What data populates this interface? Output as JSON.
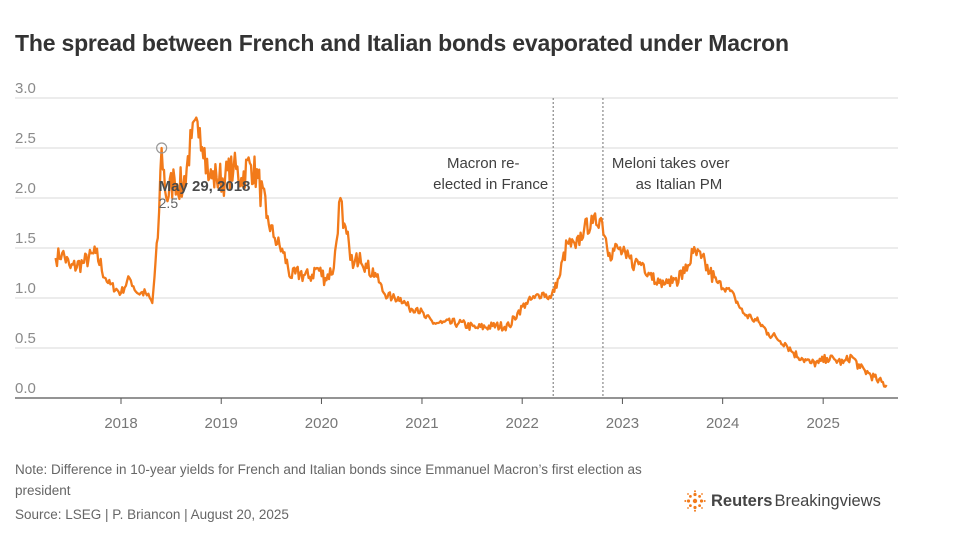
{
  "header": {
    "title": "The spread between French and Italian bonds evaporated under Macron"
  },
  "chart_data": {
    "type": "line",
    "title": "The spread between French and Italian bonds evaporated under Macron",
    "xlabel": "",
    "ylabel": "",
    "ylim": [
      0,
      3.0
    ],
    "y_ticks": [
      "3.0",
      "2.5",
      "2.0",
      "1.5",
      "1.0",
      "0.5",
      "0.0"
    ],
    "x_ticks": [
      "2018",
      "2019",
      "2020",
      "2021",
      "2022",
      "2023",
      "2024",
      "2025"
    ],
    "grid": true,
    "line_color": "#f27a1a",
    "series": [
      {
        "x": [
          "2017-05-08",
          "2017-06-01",
          "2017-07-01",
          "2017-08-15",
          "2017-10-01",
          "2017-11-15",
          "2018-01-01",
          "2018-02-01",
          "2018-03-01",
          "2018-04-01",
          "2018-04-25",
          "2018-05-15",
          "2018-05-29",
          "2018-06-15",
          "2018-07-15",
          "2018-08-15",
          "2018-09-15",
          "2018-10-15",
          "2018-11-01",
          "2018-11-20",
          "2018-12-15",
          "2019-01-15",
          "2019-02-15",
          "2019-03-15",
          "2019-04-15",
          "2019-05-15",
          "2019-06-15",
          "2019-07-15",
          "2019-08-15",
          "2019-09-15",
          "2019-10-15",
          "2019-11-15",
          "2019-12-15",
          "2020-01-15",
          "2020-02-15",
          "2020-03-10",
          "2020-03-20",
          "2020-04-10",
          "2020-04-25",
          "2020-05-20",
          "2020-06-15",
          "2020-07-15",
          "2020-08-15",
          "2020-09-15",
          "2020-10-15",
          "2020-11-15",
          "2020-12-15",
          "2021-01-15",
          "2021-02-15",
          "2021-03-15",
          "2021-05-15",
          "2021-07-15",
          "2021-09-15",
          "2021-11-15",
          "2021-12-15",
          "2022-01-15",
          "2022-02-15",
          "2022-03-15",
          "2022-04-15",
          "2022-05-15",
          "2022-06-14",
          "2022-07-15",
          "2022-08-15",
          "2022-09-15",
          "2022-10-15",
          "2022-11-15",
          "2022-12-15",
          "2023-01-15",
          "2023-02-15",
          "2023-03-15",
          "2023-04-15",
          "2023-05-15",
          "2023-06-15",
          "2023-07-15",
          "2023-08-15",
          "2023-09-15",
          "2023-10-15",
          "2023-11-15",
          "2023-12-15",
          "2024-01-15",
          "2024-02-15",
          "2024-03-15",
          "2024-04-15",
          "2024-05-15",
          "2024-06-15",
          "2024-07-15",
          "2024-08-15",
          "2024-09-15",
          "2024-10-15",
          "2024-11-15",
          "2024-12-15",
          "2025-01-15",
          "2025-02-15",
          "2025-03-15",
          "2025-04-15",
          "2025-05-15",
          "2025-06-15",
          "2025-07-15",
          "2025-08-20"
        ],
        "values": [
          1.4,
          1.45,
          1.3,
          1.35,
          1.45,
          1.15,
          1.05,
          1.2,
          1.05,
          1.05,
          0.95,
          1.6,
          2.5,
          2.0,
          2.2,
          2.1,
          2.6,
          2.7,
          2.5,
          2.2,
          2.2,
          2.2,
          2.3,
          2.2,
          2.35,
          2.2,
          1.8,
          1.6,
          1.45,
          1.2,
          1.25,
          1.2,
          1.3,
          1.2,
          1.3,
          2.0,
          1.7,
          1.55,
          1.3,
          1.45,
          1.3,
          1.25,
          1.05,
          1.0,
          1.0,
          0.9,
          0.9,
          0.8,
          0.75,
          0.75,
          0.75,
          0.7,
          0.72,
          0.72,
          0.85,
          0.95,
          1.0,
          1.05,
          1.0,
          1.2,
          1.55,
          1.5,
          1.7,
          1.75,
          1.8,
          1.45,
          1.5,
          1.4,
          1.35,
          1.35,
          1.25,
          1.15,
          1.15,
          1.2,
          1.25,
          1.45,
          1.4,
          1.25,
          1.15,
          1.1,
          1.0,
          0.85,
          0.8,
          0.75,
          0.65,
          0.6,
          0.55,
          0.45,
          0.4,
          0.35,
          0.35,
          0.4,
          0.38,
          0.35,
          0.42,
          0.3,
          0.25,
          0.18,
          0.13
        ]
      }
    ],
    "annotations": [
      {
        "date": "2022-04-24",
        "lines": [
          "Macron re-",
          "elected in France"
        ]
      },
      {
        "date": "2022-10-22",
        "lines": [
          "Meloni takes over",
          "as Italian PM"
        ]
      }
    ],
    "highlight": {
      "date": "2018-05-29",
      "label": "May 29, 2018",
      "value": "2.5"
    }
  },
  "footer": {
    "note": "Note: Difference in 10-year yields for French and Italian bonds since Emmanuel Macron’s first election as president",
    "source": "Source: LSEG | P. Briancon | August 20, 2025",
    "brand_bold": "Reuters",
    "brand_light": "Breakingviews"
  }
}
